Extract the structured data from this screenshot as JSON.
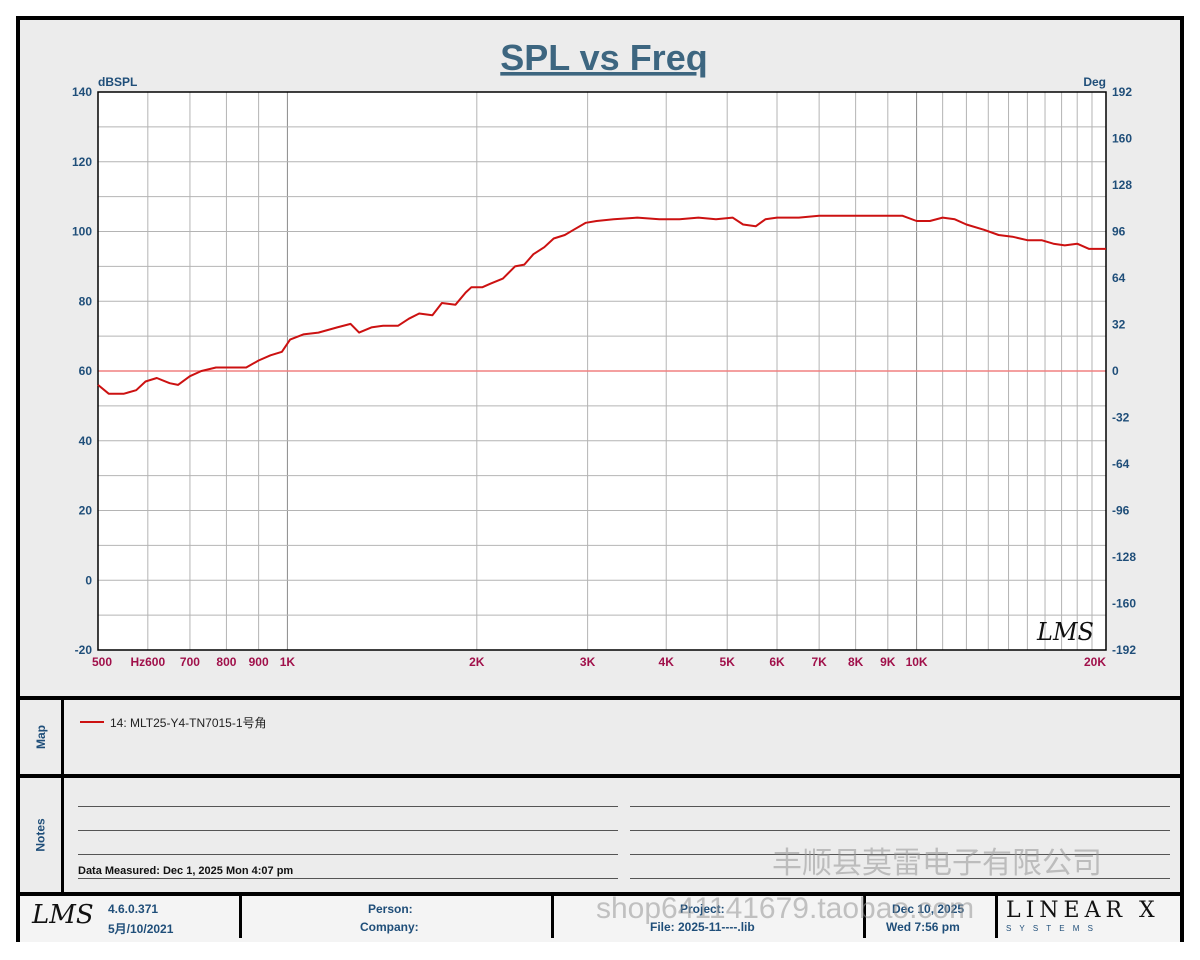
{
  "chart_data": {
    "type": "line",
    "title": "SPL vs Freq",
    "y_left_label": "dBSPL",
    "y_right_label": "Deg",
    "xscale": "log",
    "xlim": [
      500,
      20000
    ],
    "ylim": [
      -20,
      140
    ],
    "y2lim": [
      -192,
      192
    ],
    "grid": true,
    "x_ticks": [
      {
        "value": 500,
        "label": "500"
      },
      {
        "value": 600,
        "label": "Hz600"
      },
      {
        "value": 700,
        "label": "700"
      },
      {
        "value": 800,
        "label": "800"
      },
      {
        "value": 900,
        "label": "900"
      },
      {
        "value": 1000,
        "label": "1K"
      },
      {
        "value": 2000,
        "label": "2K"
      },
      {
        "value": 3000,
        "label": "3K"
      },
      {
        "value": 4000,
        "label": "4K"
      },
      {
        "value": 5000,
        "label": "5K"
      },
      {
        "value": 6000,
        "label": "6K"
      },
      {
        "value": 7000,
        "label": "7K"
      },
      {
        "value": 8000,
        "label": "8K"
      },
      {
        "value": 9000,
        "label": "9K"
      },
      {
        "value": 10000,
        "label": "10K"
      },
      {
        "value": 20000,
        "label": "20K"
      }
    ],
    "y_ticks": [
      140,
      120,
      100,
      80,
      60,
      40,
      20,
      0,
      -20
    ],
    "y2_ticks": [
      192,
      160,
      128,
      96,
      64,
      32,
      0,
      -32,
      -64,
      -96,
      -128,
      -160,
      -192
    ],
    "reference_line": {
      "y": 60,
      "color": "#f08080"
    },
    "series": [
      {
        "name": "14: MLT25-Y4-TN7015-1号角",
        "color": "#cc1111",
        "points": [
          [
            500,
            56
          ],
          [
            520,
            53.5
          ],
          [
            550,
            53.5
          ],
          [
            575,
            54.5
          ],
          [
            595,
            57
          ],
          [
            620,
            58
          ],
          [
            650,
            56.5
          ],
          [
            670,
            56
          ],
          [
            700,
            58.5
          ],
          [
            730,
            60
          ],
          [
            770,
            61
          ],
          [
            810,
            61
          ],
          [
            860,
            61
          ],
          [
            900,
            63
          ],
          [
            940,
            64.5
          ],
          [
            980,
            65.5
          ],
          [
            1010,
            69
          ],
          [
            1060,
            70.5
          ],
          [
            1120,
            71
          ],
          [
            1200,
            72.5
          ],
          [
            1260,
            73.5
          ],
          [
            1300,
            71
          ],
          [
            1360,
            72.5
          ],
          [
            1420,
            73
          ],
          [
            1500,
            73
          ],
          [
            1560,
            75
          ],
          [
            1620,
            76.5
          ],
          [
            1700,
            76
          ],
          [
            1760,
            79.5
          ],
          [
            1850,
            79
          ],
          [
            1920,
            82.5
          ],
          [
            1960,
            84
          ],
          [
            2040,
            84
          ],
          [
            2100,
            85
          ],
          [
            2200,
            86.5
          ],
          [
            2300,
            90
          ],
          [
            2380,
            90.5
          ],
          [
            2460,
            93.5
          ],
          [
            2560,
            95.5
          ],
          [
            2650,
            98
          ],
          [
            2760,
            99
          ],
          [
            2850,
            100.5
          ],
          [
            2980,
            102.5
          ],
          [
            3100,
            103
          ],
          [
            3300,
            103.5
          ],
          [
            3600,
            104
          ],
          [
            3900,
            103.5
          ],
          [
            4200,
            103.5
          ],
          [
            4500,
            104
          ],
          [
            4800,
            103.5
          ],
          [
            5100,
            104
          ],
          [
            5300,
            102
          ],
          [
            5550,
            101.5
          ],
          [
            5750,
            103.5
          ],
          [
            6000,
            104
          ],
          [
            6500,
            104
          ],
          [
            7000,
            104.5
          ],
          [
            8000,
            104.5
          ],
          [
            9000,
            104.5
          ],
          [
            9500,
            104.5
          ],
          [
            10000,
            103
          ],
          [
            10500,
            103
          ],
          [
            11000,
            104
          ],
          [
            11500,
            103.5
          ],
          [
            12000,
            102
          ],
          [
            12800,
            100.5
          ],
          [
            13500,
            99
          ],
          [
            14200,
            98.5
          ],
          [
            15000,
            97.5
          ],
          [
            15800,
            97.5
          ],
          [
            16500,
            96.5
          ],
          [
            17200,
            96
          ],
          [
            18000,
            96.5
          ],
          [
            18800,
            95
          ],
          [
            19400,
            95
          ],
          [
            20000,
            95
          ]
        ]
      }
    ]
  },
  "header": {
    "logo_text": "LMS"
  },
  "map": {
    "label": "Map",
    "legend_text": "14: MLT25-Y4-TN7015-1号角"
  },
  "notes": {
    "label": "Notes",
    "measured": "Data Measured: Dec  1, 2025  Mon  4:07 pm"
  },
  "footer": {
    "logo_text": "LMS",
    "version": "4.6.0.371",
    "version_date": "5月/10/2021",
    "person_label": "Person:",
    "company_label": "Company:",
    "project_label": "Project:",
    "file_label": "File: 2025-11----.lib",
    "date": "Dec 10, 2025",
    "time": "Wed  7:56 pm",
    "brand_main": "LINEAR X",
    "brand_sub": "S Y S T E M S"
  },
  "watermarks": {
    "shop": "shop641141679.taobao.com",
    "company": "丰顺县莫雷电子有限公司"
  },
  "colors": {
    "axis_text": "#1f4e79",
    "freq_text": "#a0104a",
    "curve": "#cc1111",
    "ref": "#f08080",
    "grid": "#b4b4b4"
  }
}
